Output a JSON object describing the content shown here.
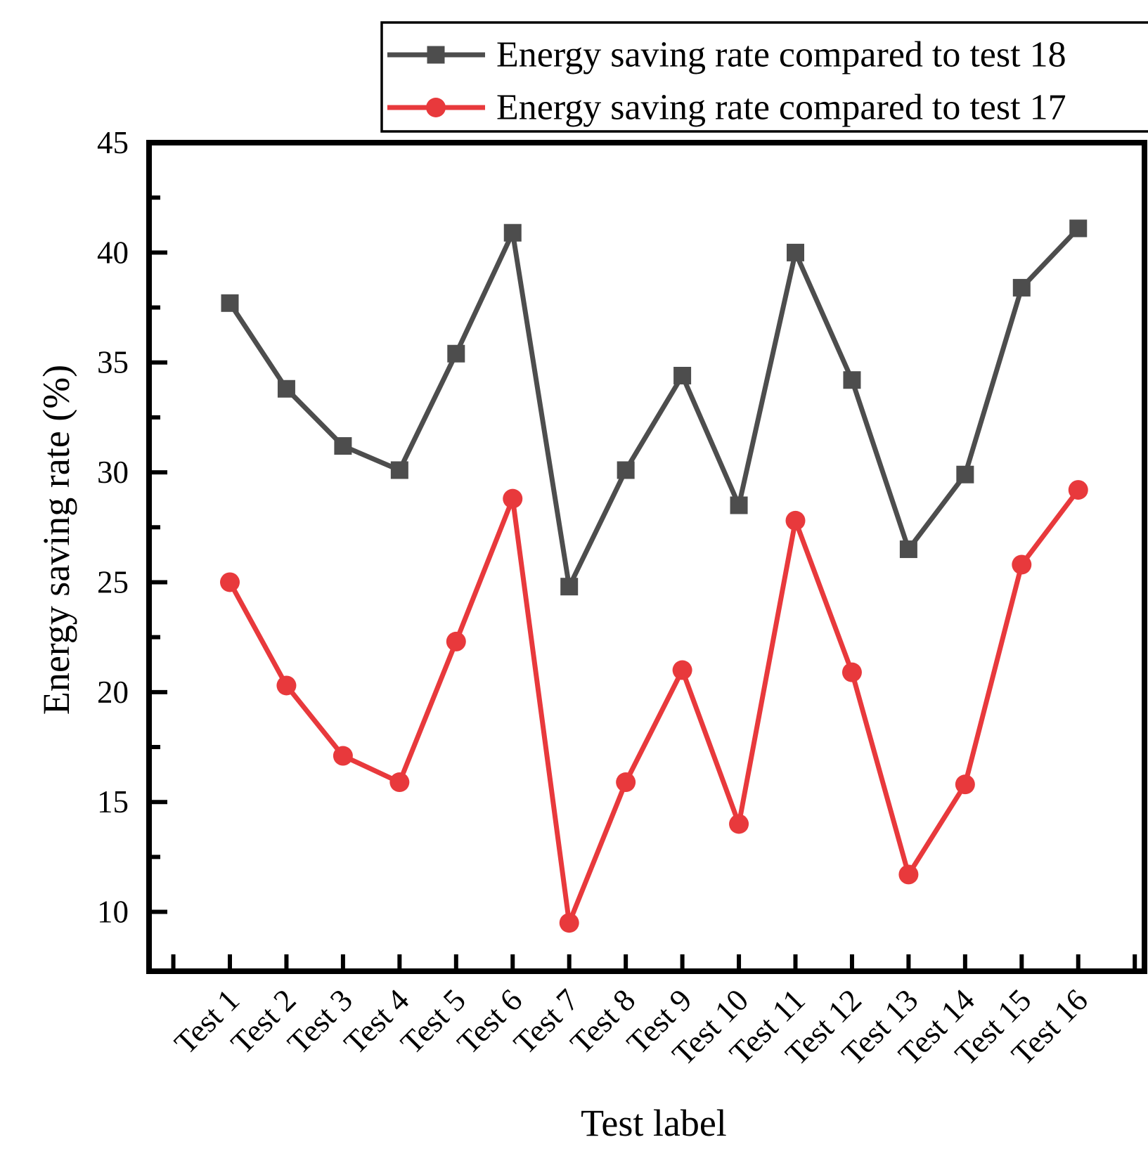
{
  "figure": {
    "background": "#FFFFFF",
    "description": "Line chart of energy saving rate per test"
  },
  "chart_data": {
    "type": "line",
    "title": "",
    "xlabel": "Test label",
    "ylabel": "Energy saving rate (%)",
    "categories": [
      "Test 1",
      "Test 2",
      "Test 3",
      "Test 4",
      "Test 5",
      "Test 6",
      "Test 7",
      "Test 8",
      "Test 9",
      "Test 10",
      "Test 11",
      "Test 12",
      "Test 13",
      "Test 14",
      "Test 15",
      "Test 16"
    ],
    "series": [
      {
        "name": "Energy saving rate compared to test 18",
        "color": "#4D4D4D",
        "marker": "square",
        "values": [
          37.7,
          33.8,
          31.2,
          30.1,
          35.4,
          40.9,
          24.8,
          30.1,
          34.4,
          28.5,
          40.0,
          34.2,
          26.5,
          29.9,
          38.4,
          41.1
        ]
      },
      {
        "name": "Energy saving rate compared to test 17",
        "color": "#E8393C",
        "marker": "circle",
        "values": [
          25.0,
          20.3,
          17.1,
          15.9,
          22.3,
          28.8,
          9.5,
          15.9,
          21.0,
          14.0,
          27.8,
          20.9,
          11.7,
          15.8,
          25.8,
          29.2
        ]
      }
    ],
    "ylim": [
      7.3,
      45
    ],
    "yticks": [
      45,
      40,
      35,
      30,
      25,
      20,
      15,
      10
    ],
    "y_minor_interval": 2.5,
    "legend_position": "top",
    "grid": false,
    "axis_color": "#000000"
  }
}
